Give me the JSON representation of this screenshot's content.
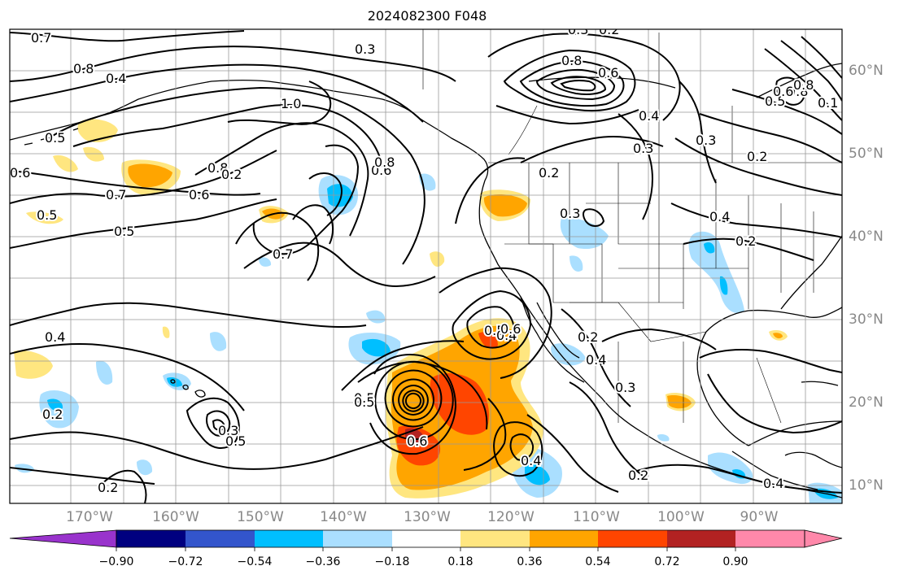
{
  "title": "2024082300 F048",
  "lon_labels": [
    "170°W",
    "160°W",
    "150°W",
    "140°W",
    "130°W",
    "120°W",
    "110°W",
    "100°W",
    "90°W"
  ],
  "lat_labels": [
    "60°N",
    "50°N",
    "40°N",
    "30°N",
    "20°N",
    "10°N"
  ],
  "colorbar": {
    "ticks": [
      "−0.90",
      "−0.72",
      "−0.54",
      "−0.36",
      "−0.18",
      "0.18",
      "0.36",
      "0.54",
      "0.72",
      "0.90"
    ],
    "colors": [
      "#9933cc",
      "#000080",
      "#3355cc",
      "#00bfff",
      "#aadfff",
      "#ffffff",
      "#ffe680",
      "#ffa500",
      "#ff4500",
      "#b22222",
      "#ff88aa"
    ]
  },
  "colors": {
    "land_outline": "#000000",
    "grid": "#999999",
    "contour": "#000000"
  },
  "contour_labels": [
    "0.7",
    "0.8",
    "0.4",
    "0.3",
    "1.0",
    "0.5",
    "0.6",
    "0.8",
    "0.2",
    "0.5",
    "0.6",
    "0.7",
    "0.5",
    "0.6",
    "0.8",
    "0.7",
    "0.5",
    "0.4",
    "0.3",
    "0.2",
    "0.4",
    "0.2",
    "0.3",
    "0.5",
    "0.8",
    "0.6",
    "0.4",
    "0.2",
    "0.3",
    "0.3",
    "0.8",
    "0.2",
    "0.3",
    "0.2",
    "0.4",
    "0.2",
    "0.5",
    "0.5",
    "0.4",
    "0.3",
    "0.6",
    "0.4",
    "0.6",
    "0.2",
    "0.2",
    "0.4",
    "0.1",
    "0.5",
    "0.6",
    "0.8"
  ]
}
